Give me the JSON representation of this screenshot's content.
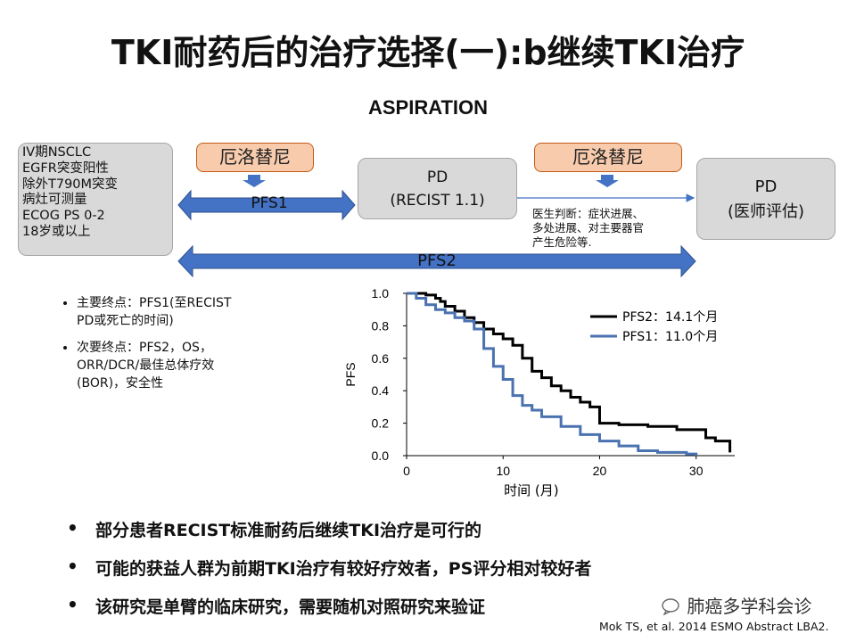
{
  "slide": {
    "title": "TKI耐药后的治疗选择(一):b继续TKI治疗",
    "subtitle": "ASPIRATION"
  },
  "criteria": [
    "IV期NSCLC",
    "EGFR突变阳性",
    "除外T790M突变",
    "病灶可测量",
    "ECOG PS 0-2",
    "18岁或以上"
  ],
  "flow": {
    "drug1": "厄洛替尼",
    "drug2": "厄洛替尼",
    "pd1_line1": "PD",
    "pd1_line2": "(RECIST 1.1)",
    "pd2_line1": "PD",
    "pd2_line2": "(医师评估)",
    "pfs1": "PFS1",
    "pfs2": "PFS2",
    "judgement_line1": "医生判断：症状进展、",
    "judgement_line2": "多处进展、对主要器官",
    "judgement_line3": "产生危险等."
  },
  "endpoints": {
    "primary_line1": "主要终点：PFS1(至RECIST",
    "primary_line2": "PD或死亡的时间)",
    "secondary_line1": "次要终点：PFS2，OS，",
    "secondary_line2": "ORR/DCR/最佳总体疗效",
    "secondary_line3": "(BOR)，安全性"
  },
  "chart_data": {
    "type": "line",
    "xlabel": "时间 (月)",
    "ylabel": "PFS",
    "xlim": [
      0,
      34
    ],
    "ylim": [
      0,
      1.0
    ],
    "xticks": [
      0,
      10,
      20,
      30
    ],
    "yticks": [
      "0.0",
      "0.2",
      "0.4",
      "0.6",
      "0.8",
      "1.0"
    ],
    "legend_position": "top-right",
    "series": [
      {
        "name": "PFS2：14.1个月",
        "color": "#000000",
        "x": [
          0,
          2,
          3,
          3.5,
          4,
          5,
          6,
          7,
          8,
          9,
          10,
          11,
          12,
          13,
          14,
          15,
          16,
          17,
          18,
          19,
          20,
          22,
          25,
          28,
          31,
          32,
          33.5
        ],
        "y": [
          1.0,
          0.99,
          0.97,
          0.95,
          0.92,
          0.89,
          0.85,
          0.82,
          0.78,
          0.75,
          0.72,
          0.68,
          0.6,
          0.52,
          0.48,
          0.43,
          0.4,
          0.36,
          0.33,
          0.3,
          0.2,
          0.19,
          0.18,
          0.16,
          0.11,
          0.09,
          0.02
        ]
      },
      {
        "name": "PFS1：11.0个月",
        "color": "#4a72b0",
        "x": [
          0,
          1,
          2,
          3,
          4,
          5,
          6,
          7,
          8,
          9,
          10,
          11,
          12,
          13,
          14,
          16,
          18,
          20,
          22,
          24,
          26,
          28,
          29,
          30
        ],
        "y": [
          1.0,
          0.97,
          0.93,
          0.9,
          0.88,
          0.85,
          0.83,
          0.78,
          0.66,
          0.55,
          0.47,
          0.37,
          0.31,
          0.28,
          0.24,
          0.18,
          0.13,
          0.09,
          0.06,
          0.03,
          0.02,
          0.02,
          0.01,
          0.0
        ]
      }
    ]
  },
  "conclusions": [
    "部分患者RECIST标准耐药后继续TKI治疗是可行的",
    "可能的获益人群为前期TKI治疗有较好疗效者，PS评分相对较好者",
    "该研究是单臂的临床研究，需要随机对照研究来验证"
  ],
  "watermark": "肺癌多学科会诊",
  "citation": "Mok TS, et al. 2014 ESMO Abstract LBA2."
}
